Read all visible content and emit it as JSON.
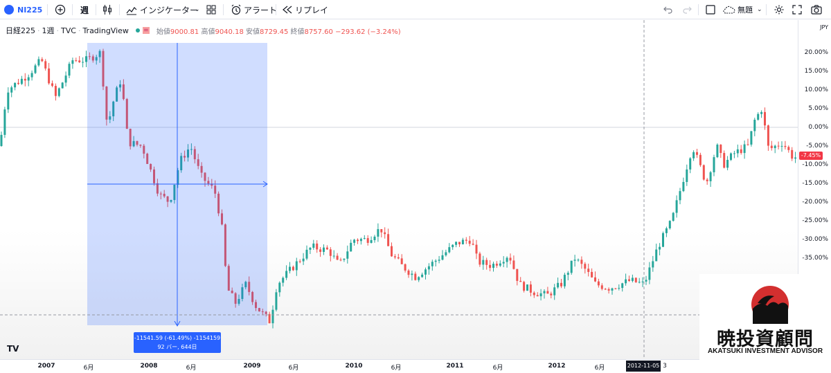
{
  "toolbar": {
    "symbol": "NI225",
    "interval": "週",
    "indicators_label": "インジケーター",
    "alert_label": "アラート",
    "replay_label": "リプレイ",
    "layout_name": "無題"
  },
  "legend": {
    "name": "日経225",
    "interval": "1週",
    "exchange": "TVC",
    "source": "TradingView",
    "open_label": "始値",
    "open": "9000.81",
    "high_label": "高値",
    "high": "9040.18",
    "low_label": "安値",
    "low": "8729.45",
    "close_label": "終値",
    "close": "8757.60",
    "change": "−293.62 (−3.24%)"
  },
  "y_axis": {
    "currency": "JPY",
    "ticks": [
      "20.00%",
      "15.00%",
      "10.00%",
      "5.00%",
      "0.00%",
      "-5.00%",
      "-10.00%",
      "-15.00%",
      "-20.00%",
      "-25.00%",
      "-30.00%",
      "-35.00%"
    ],
    "current_value": "-7.45%"
  },
  "x_axis": {
    "ticks": [
      {
        "label": "2007",
        "year": true
      },
      {
        "label": "6月",
        "year": false
      },
      {
        "label": "2008",
        "year": true
      },
      {
        "label": "6月",
        "year": false
      },
      {
        "label": "2009",
        "year": true
      },
      {
        "label": "6月",
        "year": false
      },
      {
        "label": "2010",
        "year": true
      },
      {
        "label": "6月",
        "year": false
      },
      {
        "label": "2011",
        "year": true
      },
      {
        "label": "6月",
        "year": false
      },
      {
        "label": "2012",
        "year": true
      },
      {
        "label": "6月",
        "year": false
      },
      {
        "label": "3",
        "year": false
      }
    ],
    "crosshair_date": "2012-11-05"
  },
  "measure": {
    "line1": "-11541.59 (-61.49%) -1154159",
    "line2": "92 バー, 644日"
  },
  "branding": {
    "tv_logo": "TV",
    "logo_kanji": "暁投資顧問",
    "logo_en": "AKATSUKI INVESTMENT ADVISOR"
  },
  "colors": {
    "up": "#26a69a",
    "down": "#ef5350",
    "measure": "#2962ff",
    "current_price_bg": "#f23645"
  },
  "price_anchors": [
    [
      0,
      -5
    ],
    [
      10,
      10
    ],
    [
      40,
      14
    ],
    [
      60,
      18
    ],
    [
      80,
      8
    ],
    [
      105,
      18
    ],
    [
      125,
      18
    ],
    [
      145,
      20
    ],
    [
      155,
      0
    ],
    [
      165,
      8
    ],
    [
      175,
      13
    ],
    [
      185,
      -4
    ],
    [
      205,
      -5
    ],
    [
      230,
      -18
    ],
    [
      245,
      -20
    ],
    [
      260,
      -9
    ],
    [
      275,
      -5
    ],
    [
      290,
      -13
    ],
    [
      310,
      -17
    ],
    [
      320,
      -26
    ],
    [
      328,
      -43
    ],
    [
      340,
      -47
    ],
    [
      355,
      -42
    ],
    [
      370,
      -48
    ],
    [
      390,
      -52
    ],
    [
      400,
      -42
    ],
    [
      430,
      -36
    ],
    [
      450,
      -32
    ],
    [
      475,
      -33
    ],
    [
      490,
      -37
    ],
    [
      510,
      -30
    ],
    [
      530,
      -30
    ],
    [
      550,
      -27
    ],
    [
      565,
      -34
    ],
    [
      580,
      -37
    ],
    [
      600,
      -40
    ],
    [
      620,
      -37
    ],
    [
      640,
      -34
    ],
    [
      660,
      -31
    ],
    [
      680,
      -30
    ],
    [
      690,
      -36
    ],
    [
      710,
      -37
    ],
    [
      735,
      -34
    ],
    [
      750,
      -42
    ],
    [
      770,
      -44
    ],
    [
      790,
      -45
    ],
    [
      810,
      -42
    ],
    [
      830,
      -35
    ],
    [
      845,
      -38
    ],
    [
      860,
      -42
    ],
    [
      880,
      -43
    ],
    [
      910,
      -41
    ],
    [
      930,
      -42
    ],
    [
      950,
      -32
    ],
    [
      970,
      -25
    ],
    [
      985,
      -15
    ],
    [
      1000,
      -5
    ],
    [
      1010,
      -10
    ],
    [
      1020,
      -15
    ],
    [
      1035,
      -5
    ],
    [
      1045,
      -10
    ],
    [
      1060,
      -7
    ],
    [
      1080,
      -5
    ],
    [
      1090,
      2
    ],
    [
      1100,
      5
    ],
    [
      1110,
      -6
    ],
    [
      1130,
      -4
    ],
    [
      1145,
      -8
    ]
  ]
}
